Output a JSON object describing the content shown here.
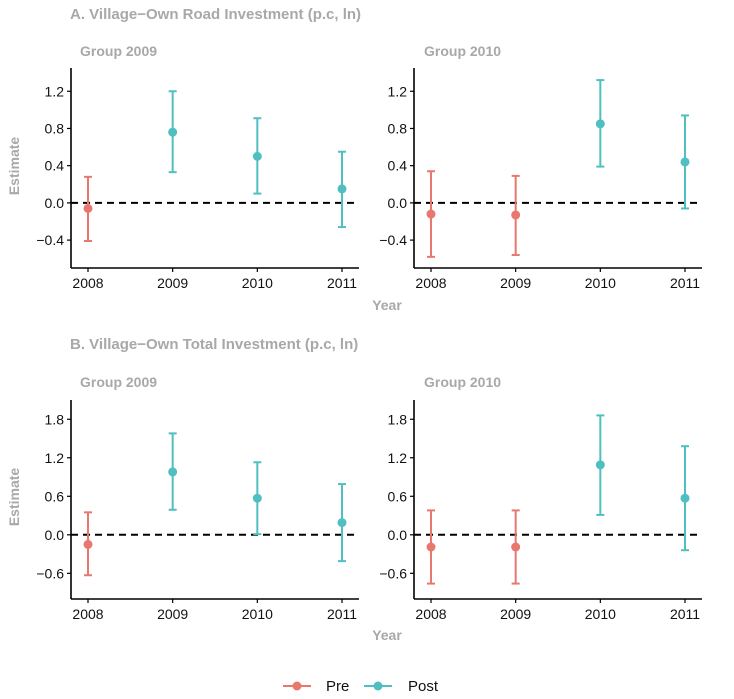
{
  "colors": {
    "pre": "#e8776e",
    "post": "#4fbfc2",
    "axis": "#000000",
    "zero_line": "#000000",
    "title_gray": "#a8a8a8"
  },
  "legend": {
    "items": [
      {
        "label": "Pre",
        "color": "#e8776e"
      },
      {
        "label": "Post",
        "color": "#4fbfc2"
      }
    ]
  },
  "chart_data": [
    {
      "type": "scatter",
      "title": "A. Village−Own Road Investment (p.c, ln)",
      "xlabel": "Year",
      "ylabel": "Estimate",
      "yticks": [
        "-0.4",
        "0.0",
        "0.4",
        "0.8",
        "1.2"
      ],
      "ylim": [
        -0.7,
        1.45
      ],
      "categories": [
        "2008",
        "2009",
        "2010",
        "2011"
      ],
      "zero_line": "dashed",
      "facets": [
        {
          "title": "Group 2009",
          "points": [
            {
              "x": "2008",
              "y": -0.06,
              "low": -0.41,
              "high": 0.28,
              "period": "Pre"
            },
            {
              "x": "2009",
              "y": 0.76,
              "low": 0.33,
              "high": 1.2,
              "period": "Post"
            },
            {
              "x": "2010",
              "y": 0.5,
              "low": 0.1,
              "high": 0.91,
              "period": "Post"
            },
            {
              "x": "2011",
              "y": 0.15,
              "low": -0.26,
              "high": 0.55,
              "period": "Post"
            }
          ]
        },
        {
          "title": "Group 2010",
          "points": [
            {
              "x": "2008",
              "y": -0.12,
              "low": -0.58,
              "high": 0.34,
              "period": "Pre"
            },
            {
              "x": "2009",
              "y": -0.13,
              "low": -0.56,
              "high": 0.29,
              "period": "Pre"
            },
            {
              "x": "2010",
              "y": 0.85,
              "low": 0.39,
              "high": 1.32,
              "period": "Post"
            },
            {
              "x": "2011",
              "y": 0.44,
              "low": -0.06,
              "high": 0.94,
              "period": "Post"
            }
          ]
        }
      ]
    },
    {
      "type": "scatter",
      "title": "B. Village−Own Total Investment (p.c, ln)",
      "xlabel": "Year",
      "ylabel": "Estimate",
      "yticks": [
        "-0.6",
        "0.0",
        "0.6",
        "1.2",
        "1.8"
      ],
      "ylim": [
        -1.0,
        2.1
      ],
      "categories": [
        "2008",
        "2009",
        "2010",
        "2011"
      ],
      "zero_line": "dashed",
      "facets": [
        {
          "title": "Group 2009",
          "points": [
            {
              "x": "2008",
              "y": -0.15,
              "low": -0.63,
              "high": 0.35,
              "period": "Pre"
            },
            {
              "x": "2009",
              "y": 0.98,
              "low": 0.39,
              "high": 1.58,
              "period": "Post"
            },
            {
              "x": "2010",
              "y": 0.57,
              "low": 0.01,
              "high": 1.13,
              "period": "Post"
            },
            {
              "x": "2011",
              "y": 0.19,
              "low": -0.41,
              "high": 0.79,
              "period": "Post"
            }
          ]
        },
        {
          "title": "Group 2010",
          "points": [
            {
              "x": "2008",
              "y": -0.19,
              "low": -0.76,
              "high": 0.38,
              "period": "Pre"
            },
            {
              "x": "2009",
              "y": -0.19,
              "low": -0.76,
              "high": 0.38,
              "period": "Pre"
            },
            {
              "x": "2010",
              "y": 1.09,
              "low": 0.31,
              "high": 1.86,
              "period": "Post"
            },
            {
              "x": "2011",
              "y": 0.57,
              "low": -0.24,
              "high": 1.38,
              "period": "Post"
            }
          ]
        }
      ]
    }
  ]
}
